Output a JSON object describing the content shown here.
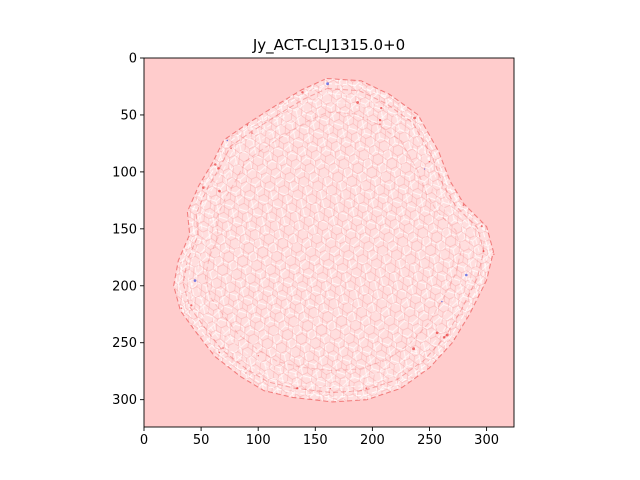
{
  "chart_data": {
    "type": "heatmap",
    "title": "Jy_ACT-CLJ1315.0+0",
    "xlabel": "",
    "ylabel": "",
    "xlim": [
      0,
      324
    ],
    "ylim": [
      324,
      0
    ],
    "x_ticks": [
      0,
      50,
      100,
      150,
      200,
      250,
      300
    ],
    "y_ticks": [
      0,
      50,
      100,
      150,
      200,
      250,
      300
    ],
    "y_axis_inverted": true,
    "grid": false,
    "colormap": "bwr",
    "colors": {
      "background": "#ffcccc",
      "disc_fill": "#ffdede",
      "light_stroke": "#ffffff",
      "red_stroke": "#e83838",
      "blue_accent": "#3a4be0"
    },
    "feature": {
      "description_shape": "irregular hexagonal-mesh disc",
      "center": [
        165,
        165
      ],
      "outline": [
        [
          160,
          18
        ],
        [
          190,
          20
        ],
        [
          215,
          32
        ],
        [
          240,
          50
        ],
        [
          258,
          82
        ],
        [
          268,
          108
        ],
        [
          280,
          128
        ],
        [
          300,
          148
        ],
        [
          306,
          170
        ],
        [
          300,
          195
        ],
        [
          285,
          225
        ],
        [
          270,
          250
        ],
        [
          250,
          272
        ],
        [
          225,
          290
        ],
        [
          195,
          300
        ],
        [
          165,
          302
        ],
        [
          130,
          298
        ],
        [
          105,
          292
        ],
        [
          85,
          280
        ],
        [
          62,
          262
        ],
        [
          45,
          240
        ],
        [
          32,
          222
        ],
        [
          26,
          200
        ],
        [
          30,
          178
        ],
        [
          40,
          155
        ],
        [
          38,
          135
        ],
        [
          48,
          112
        ],
        [
          60,
          92
        ],
        [
          70,
          72
        ],
        [
          90,
          58
        ],
        [
          115,
          42
        ],
        [
          138,
          28
        ]
      ]
    }
  }
}
